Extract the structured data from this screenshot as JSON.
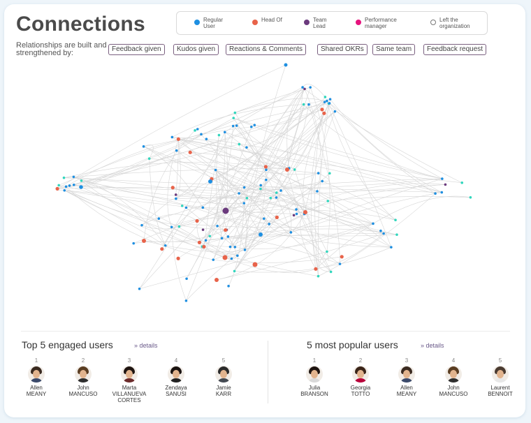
{
  "title": "Connections",
  "subtitle": "Relationships are built and strengthened by:",
  "legend": [
    {
      "label": "Regular User",
      "color": "#1e8fe1"
    },
    {
      "label": "Head Of",
      "color": "#e8634a"
    },
    {
      "label": "Team Lead",
      "color": "#6b3a7d"
    },
    {
      "label": "Performance manager",
      "color": "#e6137d"
    },
    {
      "label": "Left the organization",
      "color": "#ffffff"
    }
  ],
  "filters": [
    "Feedback given",
    "Kudos given",
    "Reactions & Comments",
    "Shared OKRs",
    "Same team",
    "Feedback request"
  ],
  "engaged": {
    "title": "Top 5 engaged users",
    "details": "» details",
    "users": [
      {
        "rank": "1",
        "first": "Allen",
        "last": "MEANY",
        "hair": "#3a2a20",
        "shirt": "#3b4a6b"
      },
      {
        "rank": "2",
        "first": "John",
        "last": "MANCUSO",
        "hair": "#5a3d22",
        "shirt": "#2f2f2f"
      },
      {
        "rank": "3",
        "first": "Marta",
        "last": "VILLANUEVA CORTES",
        "hair": "#1e1410",
        "shirt": "#6b2a2a"
      },
      {
        "rank": "4",
        "first": "Zendaya",
        "last": "SANUSI",
        "hair": "#1a1210",
        "shirt": "#222"
      },
      {
        "rank": "5",
        "first": "Jamie",
        "last": "KARR",
        "hair": "#2a2a2a",
        "shirt": "#444a52"
      }
    ]
  },
  "popular": {
    "title": "5 most popular users",
    "details": "» details",
    "users": [
      {
        "rank": "1",
        "first": "Julia",
        "last": "BRANSON",
        "hair": "#1e1410",
        "shirt": "#d9d9d9"
      },
      {
        "rank": "2",
        "first": "Georgia",
        "last": "TOTTO",
        "hair": "#3a2418",
        "shirt": "#b8003a"
      },
      {
        "rank": "3",
        "first": "Allen",
        "last": "MEANY",
        "hair": "#3a2a20",
        "shirt": "#3b4a6b"
      },
      {
        "rank": "4",
        "first": "John",
        "last": "MANCUSO",
        "hair": "#5a3d22",
        "shirt": "#2f2f2f"
      },
      {
        "rank": "5",
        "first": "Laurent",
        "last": "BENNOIT",
        "hair": "#4a3a30",
        "shirt": "#e8e8e8"
      }
    ]
  },
  "network": {
    "node_colors": {
      "regular": "#1e8fe1",
      "head": "#e8634a",
      "lead": "#6b3a7d",
      "teal": "#31d6bd"
    }
  }
}
